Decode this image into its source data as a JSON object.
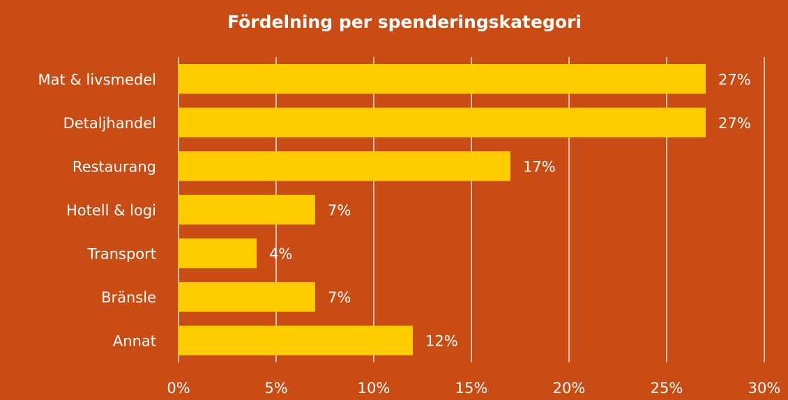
{
  "chart_data": {
    "type": "barh",
    "title": "Fördelning per spenderingskategori",
    "categories": [
      "Mat & livsmedel",
      "Detaljhandel",
      "Restaurang",
      "Hotell & logi",
      "Transport",
      "Bränsle",
      "Annat"
    ],
    "values": [
      27,
      27,
      17,
      7,
      4,
      7,
      12
    ],
    "value_labels": [
      "27%",
      "27%",
      "17%",
      "7%",
      "4%",
      "7%",
      "12%"
    ],
    "color": "#FFCC00",
    "xlim": [
      0,
      30
    ],
    "xticks": [
      {
        "value": 0,
        "label": "0%"
      },
      {
        "value": 5,
        "label": "5%"
      },
      {
        "value": 10,
        "label": "10%"
      },
      {
        "value": 15,
        "label": "15%"
      },
      {
        "value": 20,
        "label": "20%"
      },
      {
        "value": 25,
        "label": "25%"
      },
      {
        "value": 30,
        "label": "30%"
      }
    ],
    "grid": true
  }
}
